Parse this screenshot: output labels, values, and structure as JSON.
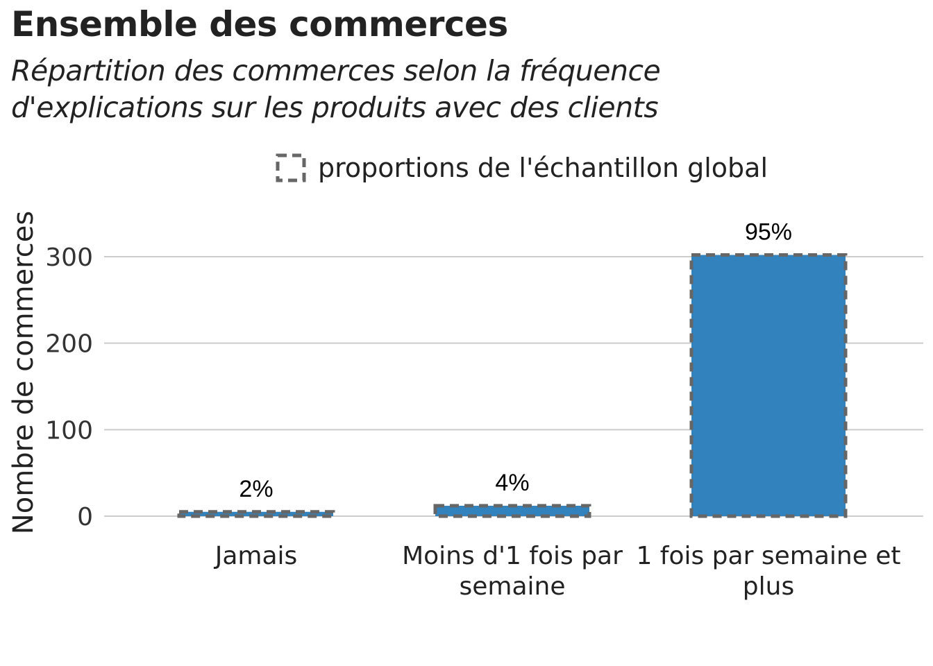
{
  "title": "Ensemble des commerces",
  "subtitle_lines": [
    "Répartition des commerces selon la fréquence",
    "d'explications sur les produits avec des clients"
  ],
  "legend": {
    "label": "proportions de l'échantillon global",
    "placement": "top-center"
  },
  "colors": {
    "bar_fill": "#3182bd",
    "outline": "#666666",
    "grid": "#cccccc"
  },
  "chart_data": {
    "type": "bar",
    "categories": [
      [
        "Jamais"
      ],
      [
        "Moins d'1 fois par",
        "semaine"
      ],
      [
        "1 fois par semaine et",
        "plus"
      ]
    ],
    "values": [
      5,
      12,
      302
    ],
    "reference_values": [
      5,
      12,
      302
    ],
    "data_labels": [
      "2%",
      "4%",
      "95%"
    ],
    "ylabel": "Nombre de commerces",
    "yticks": [
      0,
      100,
      200,
      300
    ],
    "ylim": [
      0,
      330
    ],
    "grid": true
  }
}
